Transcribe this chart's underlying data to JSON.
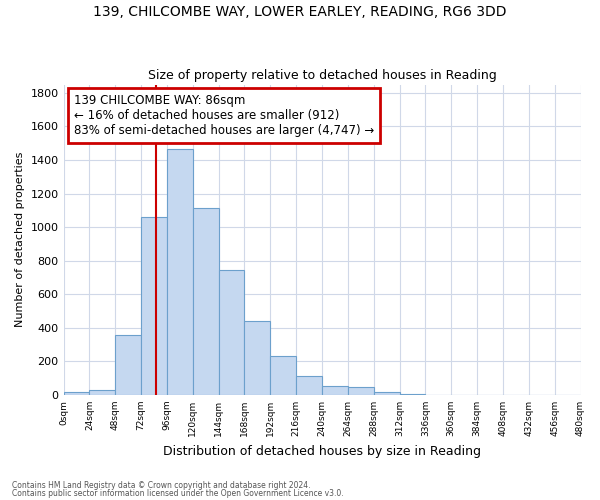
{
  "title": "139, CHILCOMBE WAY, LOWER EARLEY, READING, RG6 3DD",
  "subtitle": "Size of property relative to detached houses in Reading",
  "xlabel": "Distribution of detached houses by size in Reading",
  "ylabel": "Number of detached properties",
  "footnote1": "Contains HM Land Registry data © Crown copyright and database right 2024.",
  "footnote2": "Contains public sector information licensed under the Open Government Licence v3.0.",
  "bin_edges": [
    0,
    24,
    48,
    72,
    96,
    120,
    144,
    168,
    192,
    216,
    240,
    264,
    288,
    312,
    336,
    360,
    384,
    408,
    432,
    456,
    480
  ],
  "bar_heights": [
    15,
    30,
    355,
    1060,
    1465,
    1115,
    745,
    440,
    230,
    110,
    55,
    50,
    20,
    5,
    2,
    1,
    1,
    0,
    0,
    0
  ],
  "bar_color": "#c5d8f0",
  "bar_edge_color": "#6ca0cc",
  "annotation_title": "139 CHILCOMBE WAY: 86sqm",
  "annotation_line1": "← 16% of detached houses are smaller (912)",
  "annotation_line2": "83% of semi-detached houses are larger (4,747) →",
  "annotation_box_color": "#ffffff",
  "annotation_box_edge": "#cc0000",
  "property_line_x": 86,
  "property_line_color": "#cc0000",
  "ylim": [
    0,
    1850
  ],
  "yticks": [
    0,
    200,
    400,
    600,
    800,
    1000,
    1200,
    1400,
    1600,
    1800
  ],
  "xtick_labels": [
    "0sqm",
    "24sqm",
    "48sqm",
    "72sqm",
    "96sqm",
    "120sqm",
    "144sqm",
    "168sqm",
    "192sqm",
    "216sqm",
    "240sqm",
    "264sqm",
    "288sqm",
    "312sqm",
    "336sqm",
    "360sqm",
    "384sqm",
    "408sqm",
    "432sqm",
    "456sqm",
    "480sqm"
  ],
  "background_color": "#ffffff",
  "grid_color": "#d0d8e8",
  "title_fontsize": 10,
  "subtitle_fontsize": 9
}
